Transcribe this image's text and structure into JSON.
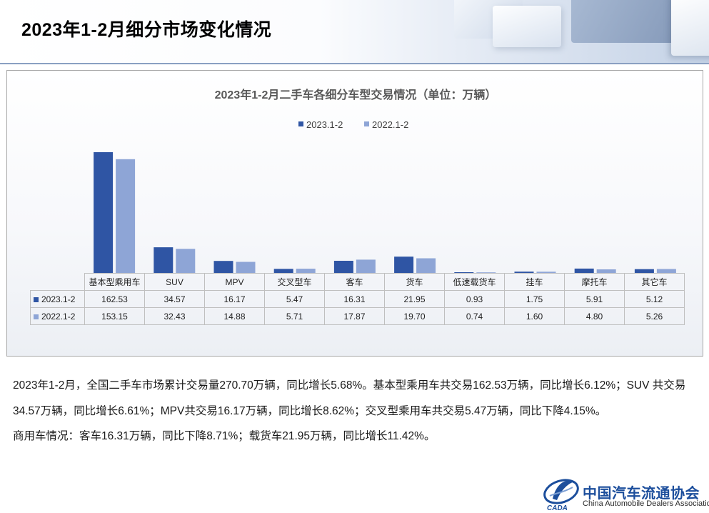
{
  "header": {
    "title": "2023年1-2月细分市场变化情况"
  },
  "colors": {
    "series_2023": "#2f55a4",
    "series_2022": "#8ea5d6",
    "brand": "#1c4e9c"
  },
  "chart_data": {
    "type": "bar",
    "title": "2023年1-2月二手车各细分车型交易情况（单位：万辆）",
    "categories": [
      "基本型乘用车",
      "SUV",
      "MPV",
      "交叉型车",
      "客车",
      "货车",
      "低速载货车",
      "挂车",
      "摩托车",
      "其它车"
    ],
    "series": [
      {
        "name": "2023.1-2",
        "values": [
          162.53,
          34.57,
          16.17,
          5.47,
          16.31,
          21.95,
          0.93,
          1.75,
          5.91,
          5.12
        ],
        "display": [
          "162.53",
          "34.57",
          "16.17",
          "5.47",
          "16.31",
          "21.95",
          "0.93",
          "1.75",
          "5.91",
          "5.12"
        ]
      },
      {
        "name": "2022.1-2",
        "values": [
          153.15,
          32.43,
          14.88,
          5.71,
          17.87,
          19.7,
          0.74,
          1.6,
          4.8,
          5.26
        ],
        "display": [
          "153.15",
          "32.43",
          "14.88",
          "5.71",
          "17.87",
          "19.70",
          "0.74",
          "1.60",
          "4.80",
          "5.26"
        ]
      }
    ],
    "legend_position": "top-center",
    "grid": false,
    "data_table": true
  },
  "body": {
    "para1": "2023年1-2月，全国二手车市场累计交易量270.70万辆，同比增长5.68%。基本型乘用车共交易162.53万辆，同比增长6.12%；SUV 共交易34.57万辆，同比增长6.61%；MPV共交易16.17万辆，同比增长8.62%；交叉型乘用车共交易5.47万辆，同比下降4.15%。",
    "para2": "商用车情况：客车16.31万辆，同比下降8.71%；载货车21.95万辆，同比增长11.42%。"
  },
  "logo": {
    "cn": "中国汽车流通协会",
    "en": "China Automobile Dealers Association",
    "mark": "CADA"
  }
}
